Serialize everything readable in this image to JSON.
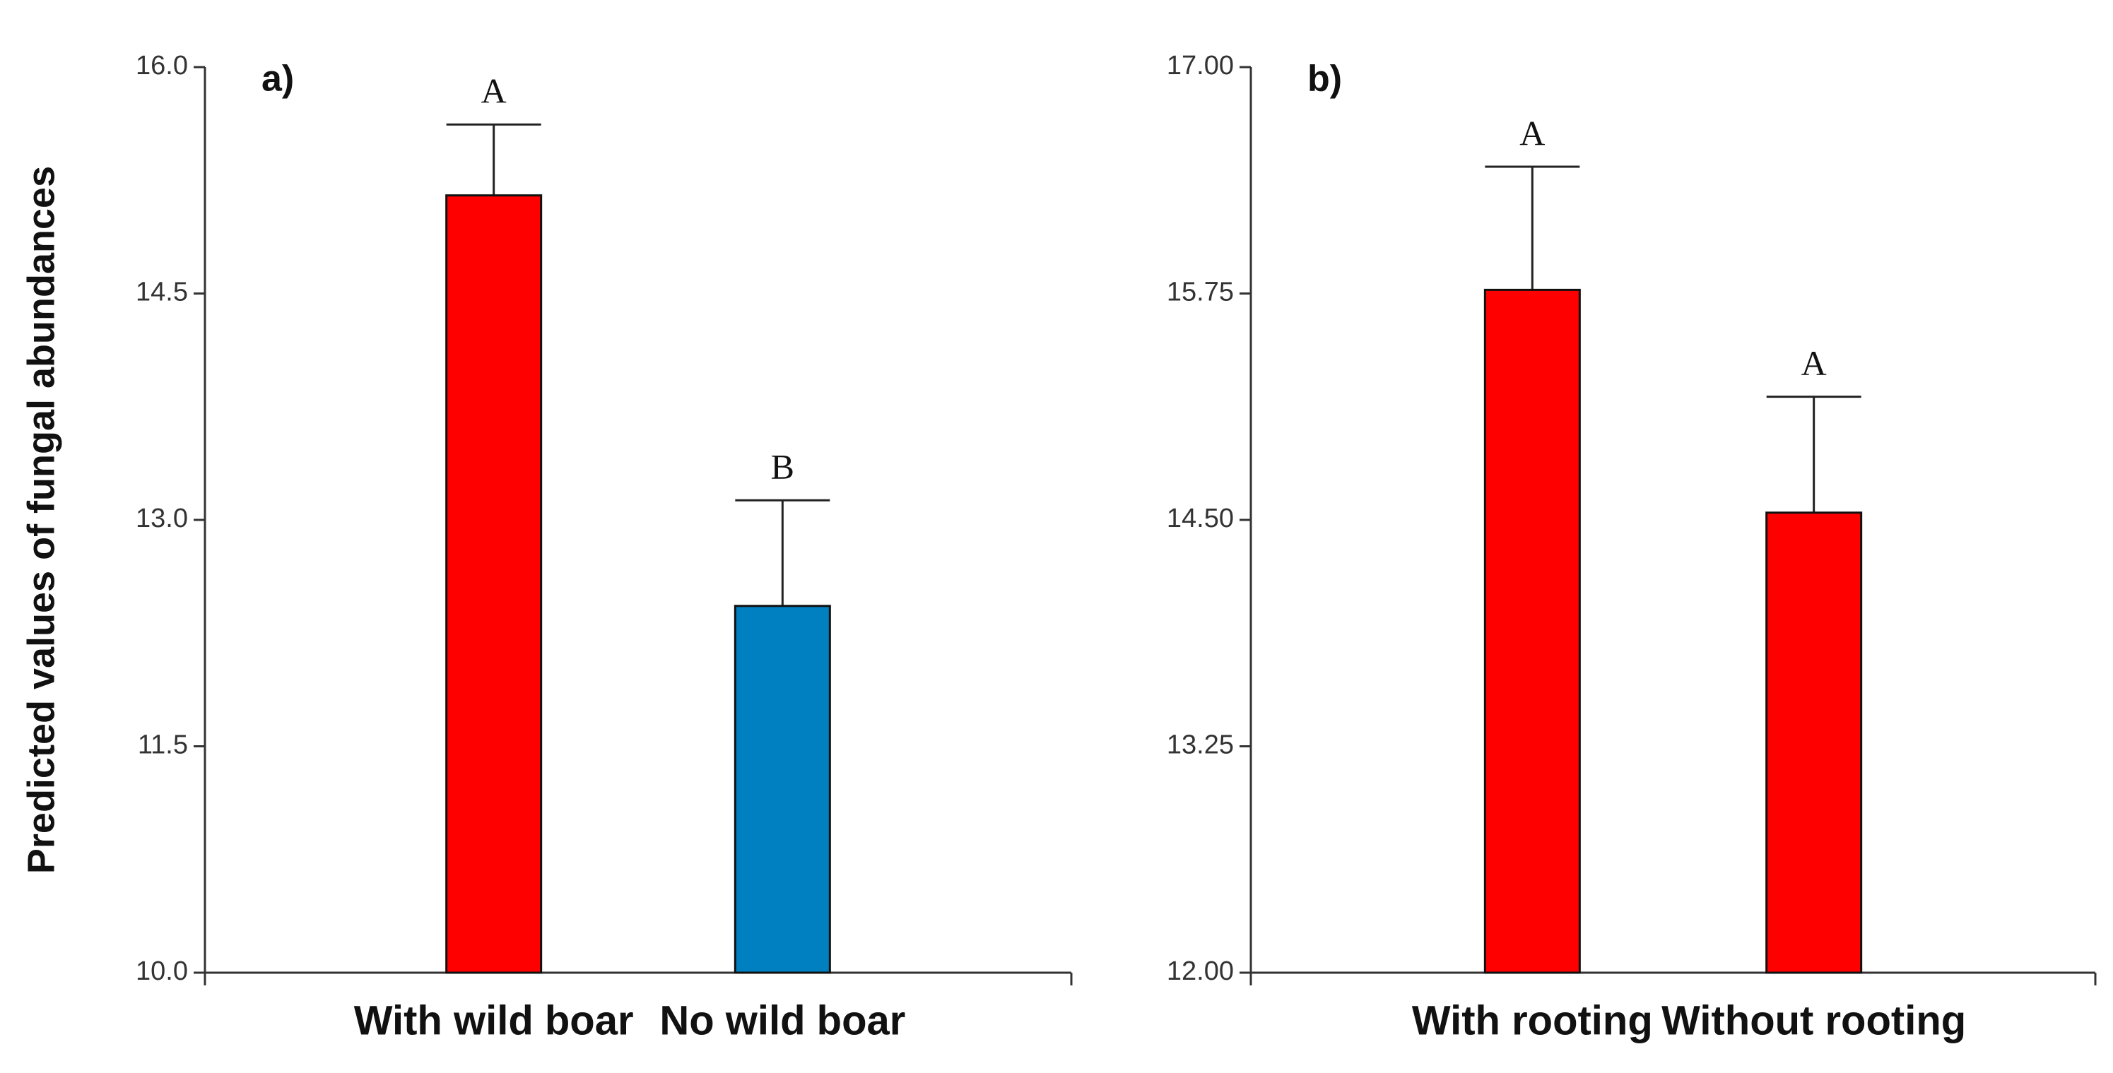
{
  "chart_data": [
    {
      "type": "bar",
      "panel": "a)",
      "ylabel": "Predicted values of fungal abundances",
      "categories": [
        "With wild boar",
        "No wild boar"
      ],
      "values": [
        15.15,
        12.43
      ],
      "errors": [
        0.47,
        0.7
      ],
      "letters": [
        "A",
        "B"
      ],
      "colors": [
        "#ff0000",
        "#0080c0"
      ],
      "ylim": [
        10,
        16
      ],
      "yticks": [
        {
          "value": 10,
          "label": "10.0"
        },
        11.5,
        {
          "value": 13,
          "label": "13.0"
        },
        14.5,
        {
          "value": 16,
          "label": "16.0"
        }
      ]
    },
    {
      "type": "bar",
      "panel": "b)",
      "categories": [
        "With rooting",
        "Without rooting"
      ],
      "values": [
        15.77,
        14.54
      ],
      "errors": [
        0.68,
        0.64
      ],
      "letters": [
        "A",
        "A"
      ],
      "colors": [
        "#ff0000",
        "#ff0000"
      ],
      "ylim": [
        12,
        17
      ],
      "yticks": [
        {
          "value": 12,
          "label": "12.00"
        },
        {
          "value": 13.25,
          "label": "13.25"
        },
        {
          "value": 14.5,
          "label": "14.50"
        },
        {
          "value": 15.75,
          "label": "15.75"
        },
        {
          "value": 17,
          "label": "17.00"
        }
      ]
    }
  ]
}
